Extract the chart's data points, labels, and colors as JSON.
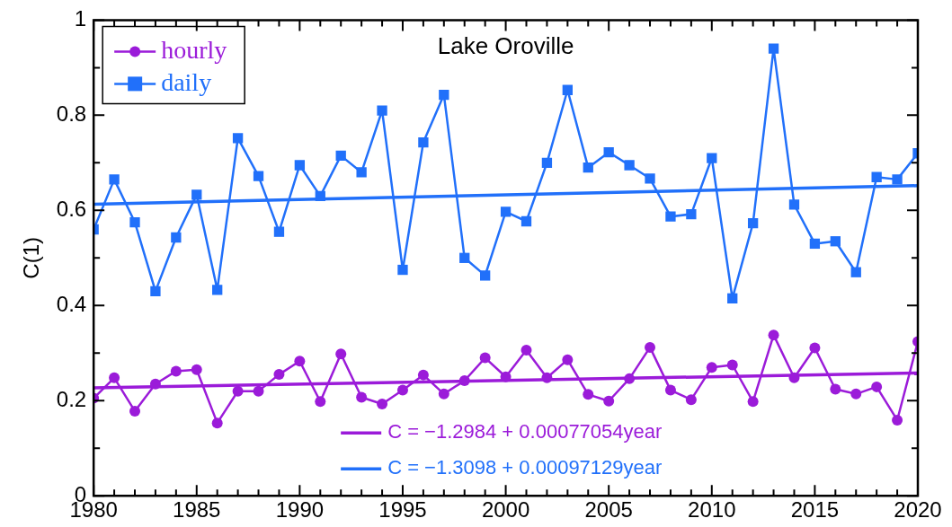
{
  "chart_data": {
    "type": "line",
    "title": "Lake Oroville",
    "ylabel": "C(1)",
    "x": [
      1980,
      1981,
      1982,
      1983,
      1984,
      1985,
      1986,
      1987,
      1988,
      1989,
      1990,
      1991,
      1992,
      1993,
      1994,
      1995,
      1996,
      1997,
      1998,
      1999,
      2000,
      2001,
      2002,
      2003,
      2004,
      2005,
      2006,
      2007,
      2008,
      2009,
      2010,
      2011,
      2012,
      2013,
      2014,
      2015,
      2016,
      2017,
      2018,
      2019,
      2020
    ],
    "series": [
      {
        "name": "hourly",
        "color": "#9b1bd9",
        "marker": "circle",
        "values": [
          0.205,
          0.248,
          0.178,
          0.235,
          0.262,
          0.265,
          0.153,
          0.22,
          0.22,
          0.255,
          0.283,
          0.198,
          0.298,
          0.207,
          0.193,
          0.222,
          0.254,
          0.214,
          0.242,
          0.29,
          0.25,
          0.306,
          0.248,
          0.286,
          0.213,
          0.199,
          0.246,
          0.312,
          0.222,
          0.202,
          0.27,
          0.275,
          0.198,
          0.338,
          0.248,
          0.311,
          0.224,
          0.214,
          0.229,
          0.159,
          0.324
        ]
      },
      {
        "name": "daily",
        "color": "#2170fa",
        "marker": "square",
        "values": [
          0.56,
          0.665,
          0.575,
          0.43,
          0.543,
          0.633,
          0.433,
          0.752,
          0.672,
          0.555,
          0.695,
          0.63,
          0.715,
          0.68,
          0.81,
          0.475,
          0.743,
          0.843,
          0.5,
          0.463,
          0.597,
          0.577,
          0.7,
          0.853,
          0.69,
          0.722,
          0.695,
          0.667,
          0.587,
          0.592,
          0.71,
          0.415,
          0.573,
          0.94,
          0.612,
          0.53,
          0.535,
          0.47,
          0.67,
          0.665,
          0.72
        ]
      },
      {
        "type": "line",
        "color": "#9b1bd9",
        "marker": "none",
        "values": [
          0.227,
          null,
          null,
          null,
          null,
          null,
          null,
          null,
          null,
          null,
          null,
          null,
          null,
          null,
          null,
          null,
          null,
          null,
          null,
          null,
          null,
          null,
          null,
          null,
          null,
          null,
          null,
          null,
          null,
          null,
          null,
          null,
          null,
          null,
          null,
          null,
          null,
          null,
          null,
          null,
          0.258
        ]
      },
      {
        "type": "line",
        "color": "#2170fa",
        "marker": "none",
        "values": [
          0.613,
          null,
          null,
          null,
          null,
          null,
          null,
          null,
          null,
          null,
          null,
          null,
          null,
          null,
          null,
          null,
          null,
          null,
          null,
          null,
          null,
          null,
          null,
          null,
          null,
          null,
          null,
          null,
          null,
          null,
          null,
          null,
          null,
          null,
          null,
          null,
          null,
          null,
          null,
          null,
          0.652
        ]
      }
    ],
    "annotations": [
      "C = −1.2984 + 0.00077054year",
      "C = −1.3098 + 0.00097129year"
    ],
    "xlim": [
      1980,
      2020
    ],
    "xticks": [
      1980,
      {
        "value": 1981,
        "label": null
      },
      {
        "value": 1982,
        "label": null
      },
      {
        "value": 1983,
        "label": null
      },
      {
        "value": 1984,
        "label": null
      },
      1985,
      {
        "value": 1986,
        "label": null
      },
      {
        "value": 1987,
        "label": null
      },
      {
        "value": 1988,
        "label": null
      },
      {
        "value": 1989,
        "label": null
      },
      1990,
      {
        "value": 1991,
        "label": null
      },
      {
        "value": 1992,
        "label": null
      },
      {
        "value": 1993,
        "label": null
      },
      {
        "value": 1994,
        "label": null
      },
      1995,
      {
        "value": 1996,
        "label": null
      },
      {
        "value": 1997,
        "label": null
      },
      {
        "value": 1998,
        "label": null
      },
      {
        "value": 1999,
        "label": null
      },
      2000,
      {
        "value": 2001,
        "label": null
      },
      {
        "value": 2002,
        "label": null
      },
      {
        "value": 2003,
        "label": null
      },
      {
        "value": 2004,
        "label": null
      },
      2005,
      {
        "value": 2006,
        "label": null
      },
      {
        "value": 2007,
        "label": null
      },
      {
        "value": 2008,
        "label": null
      },
      {
        "value": 2009,
        "label": null
      },
      2010,
      {
        "value": 2011,
        "label": null
      },
      {
        "value": 2012,
        "label": null
      },
      {
        "value": 2013,
        "label": null
      },
      {
        "value": 2014,
        "label": null
      },
      2015,
      {
        "value": 2016,
        "label": null
      },
      {
        "value": 2017,
        "label": null
      },
      {
        "value": 2018,
        "label": null
      },
      {
        "value": 2019,
        "label": null
      },
      2020
    ],
    "ylim": [
      0,
      1
    ],
    "yticks": [
      0,
      {
        "value": 0.1,
        "label": null
      },
      {
        "value": 0.2,
        "label": "0.2"
      },
      {
        "value": 0.3,
        "label": null
      },
      {
        "value": 0.4,
        "label": "0.4"
      },
      {
        "value": 0.5,
        "label": null
      },
      {
        "value": 0.6,
        "label": "0.6"
      },
      {
        "value": 0.7,
        "label": null
      },
      {
        "value": 0.8,
        "label": "0.8"
      },
      {
        "value": 0.9,
        "label": null
      },
      1
    ],
    "grid": false,
    "legend": "top left",
    "line_style": "solid"
  }
}
